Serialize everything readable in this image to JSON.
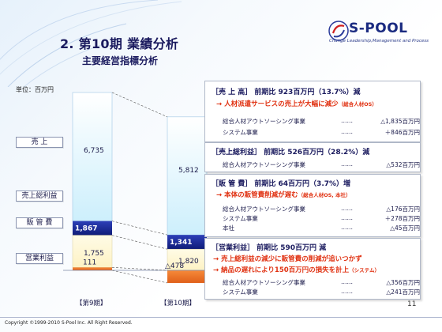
{
  "colors": {
    "title": "#1a1a5e",
    "accent_red": "#e03010",
    "bar_sales_top": "#e8f6fd",
    "bar_gross": "#1c2e9c",
    "bar_sga": "#fff8d8",
    "bar_op_profit": "#f07a2a"
  },
  "logo": {
    "text": "S-POOL",
    "tagline": "Change Leadership,Management and Process",
    "icon": "s-pool-swirl-icon"
  },
  "title": "2. 第10期  業績分析",
  "subtitle": "主要経営指標分析",
  "unit": "単位：百万円",
  "row_labels": {
    "sales": "売  上",
    "gross": "売上総利益",
    "sga": "販 管 費",
    "op": "営業利益"
  },
  "periods": [
    "【第9期】",
    "【第10期】"
  ],
  "chart_data": {
    "type": "bar",
    "categories": [
      "【第9期】",
      "【第10期】"
    ],
    "series": [
      {
        "name": "売  上",
        "values": [
          6735,
          5812
        ]
      },
      {
        "name": "売上総利益",
        "values": [
          1867,
          1341
        ]
      },
      {
        "name": "販 管 費",
        "values": [
          1755,
          1820
        ]
      },
      {
        "name": "営業利益",
        "values": [
          111,
          -478
        ]
      }
    ],
    "labels": {
      "sales": [
        "6,735",
        "5,812"
      ],
      "gross": [
        "1,867",
        "1,341"
      ],
      "sga": [
        "1,755",
        "1,820"
      ],
      "op": [
        "111",
        "△478"
      ]
    }
  },
  "boxes": {
    "sales": {
      "head": "［売  上  高］ 前期比 923百万円（13.7%）減",
      "note": "→ 人材派遣サービスの売上が大幅に減少",
      "note_small": "（総合人材OS）",
      "rows": [
        {
          "name": "総合人材アウトソーシング事業",
          "dots": "……",
          "value": "△1,835百万円"
        },
        {
          "name": "システム事業",
          "dots": "……",
          "value": "＋846百万円"
        }
      ]
    },
    "gross": {
      "head": "［売上総利益］ 前期比 526百万円（28.2%）減",
      "rows": [
        {
          "name": "総合人材アウトソーシング事業",
          "dots": "……",
          "value": "△532百万円"
        }
      ]
    },
    "sga": {
      "head": "［販  管  費］ 前期比 64百万円（3.7%）増",
      "note": "→ 本体の販管費削減が遅む",
      "note_small": "（総合人材OS, 本社）",
      "rows": [
        {
          "name": "総合人材アウトソーシング事業",
          "dots": "……",
          "value": "△176百万円"
        },
        {
          "name": "システム事業",
          "dots": "……",
          "value": "＋278百万円"
        },
        {
          "name": "本社",
          "dots": "……",
          "value": "△45百万円"
        }
      ]
    },
    "op": {
      "head": "［営業利益］ 前期比 590百万円 減",
      "note1": "→ 売上総利益の減少に販管費の削減が追いつかず",
      "note2": "→ 納品の遅れにより150百万円の損失を計上",
      "note2_small": "（システム）",
      "rows": [
        {
          "name": "総合人材アウトソーシング事業",
          "dots": "……",
          "value": "△356百万円"
        },
        {
          "name": "システム事業",
          "dots": "……",
          "value": "△241百万円"
        }
      ]
    }
  },
  "page_number": "11",
  "copyright": "Copyright ©1999-2010 S-Pool Inc. All Right Reserved."
}
